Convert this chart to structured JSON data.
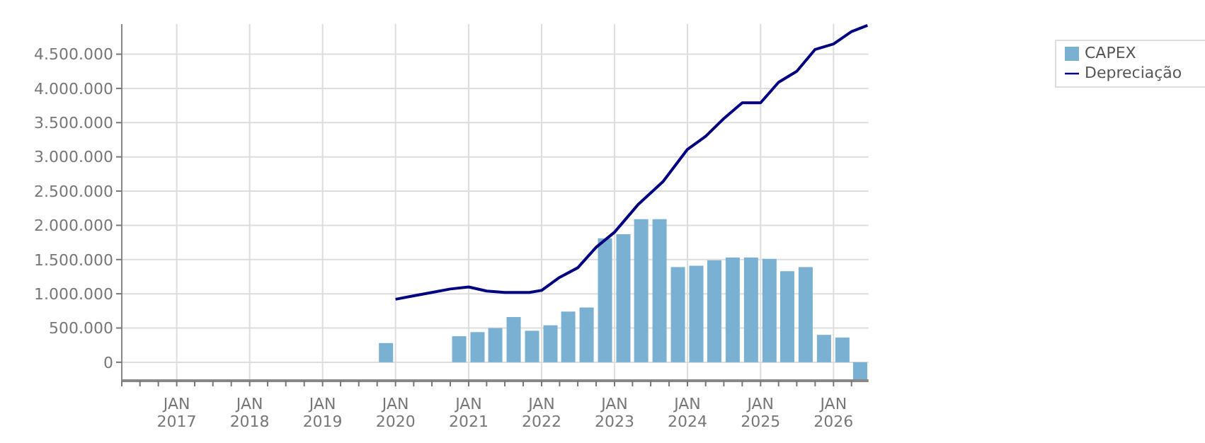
{
  "chart_data": {
    "type": "bar",
    "xlim": [
      "2016-04-01",
      "2026-06-25"
    ],
    "ylim": [
      -270000,
      4940000
    ],
    "yticks": [
      0,
      {
        "value": 500000,
        "label": "500.000"
      },
      {
        "value": 1000000,
        "label": "1.000.000"
      },
      {
        "value": 1500000,
        "label": "1.500.000"
      },
      {
        "value": 2000000,
        "label": "2.000.000"
      },
      {
        "value": 2500000,
        "label": "2.500.000"
      },
      {
        "value": 3000000,
        "label": "3.000.000"
      },
      {
        "value": 3500000,
        "label": "3.500.000"
      },
      {
        "value": 4000000,
        "label": "4.000.000"
      },
      {
        "value": 4500000,
        "label": "4.500.000"
      }
    ],
    "xticks": [
      {
        "value": "2016-04-01",
        "label": null
      },
      {
        "value": "2016-07-01",
        "label": null
      },
      {
        "value": "2016-10-01",
        "label": null
      },
      {
        "value": "2017-01-01",
        "label": "JAN\n2017"
      },
      {
        "value": "2017-04-01",
        "label": null
      },
      {
        "value": "2017-07-01",
        "label": null
      },
      {
        "value": "2017-10-01",
        "label": null
      },
      {
        "value": "2018-01-01",
        "label": "JAN\n2018"
      },
      {
        "value": "2018-04-01",
        "label": null
      },
      {
        "value": "2018-07-01",
        "label": null
      },
      {
        "value": "2018-10-01",
        "label": null
      },
      {
        "value": "2019-01-01",
        "label": "JAN\n2019"
      },
      {
        "value": "2019-04-01",
        "label": null
      },
      {
        "value": "2019-07-01",
        "label": null
      },
      {
        "value": "2019-10-01",
        "label": null
      },
      {
        "value": "2020-01-01",
        "label": "JAN\n2020"
      },
      {
        "value": "2020-04-01",
        "label": null
      },
      {
        "value": "2020-07-01",
        "label": null
      },
      {
        "value": "2020-10-01",
        "label": null
      },
      {
        "value": "2021-01-01",
        "label": "JAN\n2021"
      },
      {
        "value": "2021-04-01",
        "label": null
      },
      {
        "value": "2021-07-01",
        "label": null
      },
      {
        "value": "2021-10-01",
        "label": null
      },
      {
        "value": "2022-01-01",
        "label": "JAN\n2022"
      },
      {
        "value": "2022-04-01",
        "label": null
      },
      {
        "value": "2022-07-01",
        "label": null
      },
      {
        "value": "2022-10-01",
        "label": null
      },
      {
        "value": "2023-01-01",
        "label": "JAN\n2023"
      },
      {
        "value": "2023-04-01",
        "label": null
      },
      {
        "value": "2023-07-01",
        "label": null
      },
      {
        "value": "2023-10-01",
        "label": null
      },
      {
        "value": "2024-01-01",
        "label": "JAN\n2024"
      },
      {
        "value": "2024-04-01",
        "label": null
      },
      {
        "value": "2024-07-01",
        "label": null
      },
      {
        "value": "2024-10-01",
        "label": null
      },
      {
        "value": "2025-01-01",
        "label": "JAN\n2025"
      },
      {
        "value": "2025-04-01",
        "label": null
      },
      {
        "value": "2025-07-01",
        "label": null
      },
      {
        "value": "2025-10-01",
        "label": null
      },
      {
        "value": "2026-01-01",
        "label": "JAN\n2026"
      },
      {
        "value": "2026-04-01",
        "label": null
      }
    ],
    "grid": true,
    "legend": "top right",
    "series": [
      {
        "name": "CAPEX",
        "color": "#7ab0d2",
        "x": [
          "2019-11-15",
          "2020-11-15",
          "2021-02-15",
          "2021-05-15",
          "2021-08-15",
          "2021-11-15",
          "2022-02-15",
          "2022-05-15",
          "2022-08-15",
          "2022-11-15",
          "2023-02-15",
          "2023-05-15",
          "2023-08-15",
          "2023-11-15",
          "2024-02-15",
          "2024-05-15",
          "2024-08-15",
          "2024-11-15",
          "2025-02-15",
          "2025-05-15",
          "2025-08-15",
          "2025-11-15",
          "2026-02-15",
          "2026-05-15"
        ],
        "values": [
          280000,
          380000,
          440000,
          500000,
          660000,
          460000,
          540000,
          740000,
          800000,
          1810000,
          1870000,
          2090000,
          2090000,
          1390000,
          1410000,
          1490000,
          1530000,
          1530000,
          1510000,
          1330000,
          1390000,
          400000,
          360000,
          -260000
        ]
      },
      {
        "name": "Depreciação",
        "type": "line",
        "color": "#000080",
        "x": [
          "2020-01-01",
          "2020-04-01",
          "2020-07-01",
          "2020-10-01",
          "2021-01-01",
          "2021-04-01",
          "2021-07-01",
          "2021-11-01",
          "2022-01-01",
          "2022-04-01",
          "2022-07-01",
          "2022-10-01",
          "2023-01-01",
          "2023-05-01",
          "2023-09-01",
          "2024-01-01",
          "2024-04-01",
          "2024-07-01",
          "2024-10-01",
          "2025-01-01",
          "2025-04-01",
          "2025-07-01",
          "2025-10-01",
          "2026-01-01",
          "2026-04-01",
          "2026-06-20"
        ],
        "values": [
          920000,
          970000,
          1020000,
          1070000,
          1100000,
          1040000,
          1020000,
          1020000,
          1050000,
          1240000,
          1380000,
          1680000,
          1900000,
          2310000,
          2640000,
          3110000,
          3300000,
          3560000,
          3790000,
          3790000,
          4090000,
          4250000,
          4570000,
          4650000,
          4830000,
          4920000
        ]
      }
    ]
  }
}
